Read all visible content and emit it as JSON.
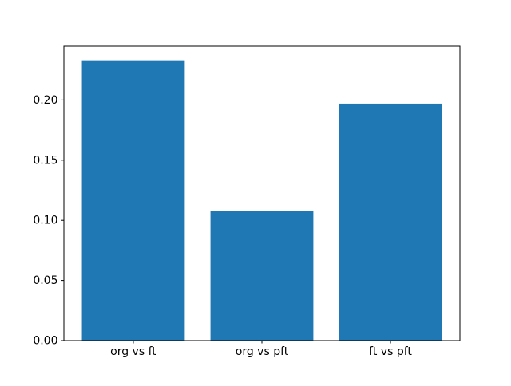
{
  "figure": {
    "background": "#ffffff",
    "spine_color": "#000000",
    "text_color": "#000000"
  },
  "chart_data": {
    "type": "bar",
    "categories": [
      "org vs ft",
      "org vs pft",
      "ft vs pft"
    ],
    "values": [
      0.233,
      0.108,
      0.197
    ],
    "title": "",
    "xlabel": "",
    "ylabel": "",
    "ylim": [
      0,
      0.2447
    ],
    "xlim": [
      -0.54,
      2.54
    ],
    "yticks": [
      0.0,
      0.05,
      0.1,
      0.15,
      0.2
    ],
    "ytick_labels": [
      "0.00",
      "0.05",
      "0.10",
      "0.15",
      "0.20"
    ],
    "bar_color": "#1f77b4",
    "bar_width": 0.8,
    "grid": false,
    "legend": null
  }
}
